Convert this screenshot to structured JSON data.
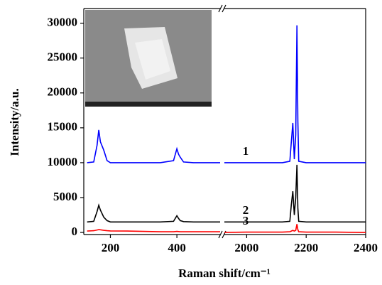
{
  "chart_data": {
    "type": "line",
    "x_label": "Raman shift/cm⁻¹",
    "y_label": "Intensity/a.u.",
    "x": [
      130,
      150,
      160,
      165,
      170,
      180,
      190,
      200,
      250,
      300,
      350,
      390,
      400,
      405,
      410,
      420,
      450,
      500,
      530,
      1925,
      2000,
      2080,
      2100,
      2120,
      2145,
      2150,
      2155,
      2160,
      2165,
      2169,
      2172,
      2175,
      2200,
      2300,
      2400
    ],
    "x_segments": [
      {
        "xlim": [
          120,
          530
        ],
        "xticks": [
          200,
          400
        ]
      },
      {
        "xlim": [
          1925,
          2400
        ],
        "xticks": [
          2000,
          2200,
          2400
        ]
      }
    ],
    "ylim": [
      -300,
      32100
    ],
    "yticks": [
      0,
      5000,
      10000,
      15000,
      20000,
      25000,
      30000
    ],
    "series": [
      {
        "name": "1",
        "color": "#0000ff",
        "values": [
          10000,
          10100,
          12500,
          14700,
          13000,
          11800,
          10300,
          10000,
          10000,
          10000,
          10000,
          10300,
          12000,
          11200,
          10800,
          10100,
          10000,
          10000,
          10000,
          10000,
          10000,
          10000,
          10000,
          10000,
          10200,
          13000,
          15700,
          10500,
          14000,
          29700,
          16000,
          10200,
          10000,
          10000,
          10000
        ]
      },
      {
        "name": "2",
        "color": "#000000",
        "values": [
          1500,
          1600,
          3000,
          3900,
          3200,
          2200,
          1700,
          1500,
          1500,
          1500,
          1500,
          1600,
          2400,
          2000,
          1700,
          1550,
          1500,
          1500,
          1500,
          1500,
          1500,
          1500,
          1500,
          1500,
          1600,
          4000,
          5900,
          2500,
          5000,
          9700,
          3500,
          1600,
          1500,
          1500,
          1500
        ]
      },
      {
        "name": "3",
        "color": "#ff0000",
        "values": [
          200,
          250,
          350,
          400,
          380,
          300,
          250,
          220,
          200,
          150,
          100,
          100,
          150,
          130,
          100,
          100,
          100,
          100,
          100,
          0,
          50,
          50,
          50,
          50,
          100,
          200,
          300,
          200,
          300,
          1200,
          400,
          100,
          50,
          50,
          0
        ]
      }
    ]
  }
}
